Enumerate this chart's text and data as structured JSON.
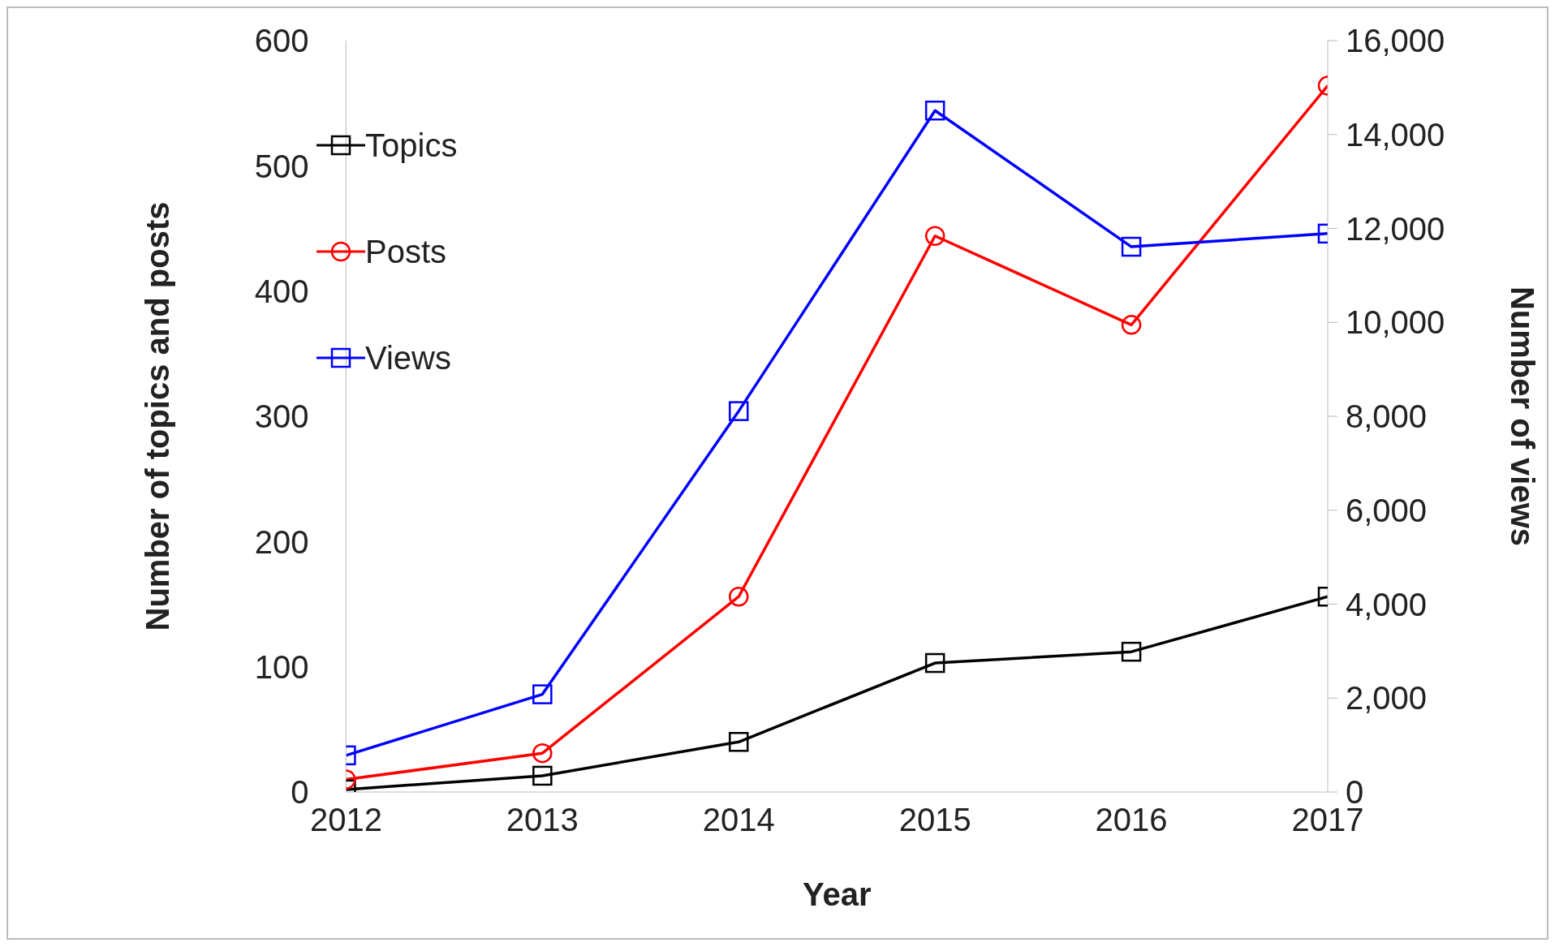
{
  "chart_data": {
    "type": "line",
    "xlabel": "Year",
    "ylabel": "Number of topics and posts",
    "y2label": "Number of views",
    "categories": [
      "2012",
      "2013",
      "2014",
      "2015",
      "2016",
      "2017"
    ],
    "ylim": [
      0,
      600
    ],
    "yticks": [
      0,
      100,
      200,
      300,
      400,
      500,
      600
    ],
    "y2lim": [
      0,
      16000
    ],
    "y2ticks": [
      {
        "value": 0,
        "label": "0"
      },
      {
        "value": 2000,
        "label": "2,000"
      },
      {
        "value": 4000,
        "label": "4,000"
      },
      {
        "value": 6000,
        "label": "6,000"
      },
      {
        "value": 8000,
        "label": "8,000"
      },
      {
        "value": 10000,
        "label": "10,000"
      },
      {
        "value": 12000,
        "label": "12,000"
      },
      {
        "value": 14000,
        "label": "14,000"
      },
      {
        "value": 16000,
        "label": "16,000"
      }
    ],
    "legend": "top left",
    "line_style": "solid",
    "series": [
      {
        "name": "Topics",
        "color": "#000000",
        "marker": "square",
        "values": [
          2,
          13,
          40,
          103,
          112,
          156
        ]
      },
      {
        "name": "Posts",
        "color": "#ff0000",
        "marker": "circle",
        "values": [
          10,
          31,
          156,
          444,
          373,
          564
        ]
      },
      {
        "name": "Views",
        "color": "#0000ff",
        "marker": "square",
        "axis": "y2",
        "values": [
          780,
          2080,
          8110,
          14510,
          11610,
          11890
        ]
      }
    ]
  }
}
